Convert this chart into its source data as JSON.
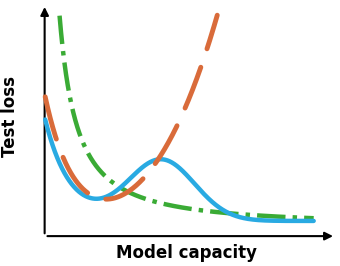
{
  "title": "",
  "xlabel": "Model capacity",
  "ylabel": "Test loss",
  "background_color": "#ffffff",
  "blue_color": "#29aae2",
  "orange_color": "#d96b3a",
  "green_color": "#3aab35",
  "linewidth": 3.2,
  "figsize": [
    3.4,
    2.66
  ],
  "dpi": 100
}
